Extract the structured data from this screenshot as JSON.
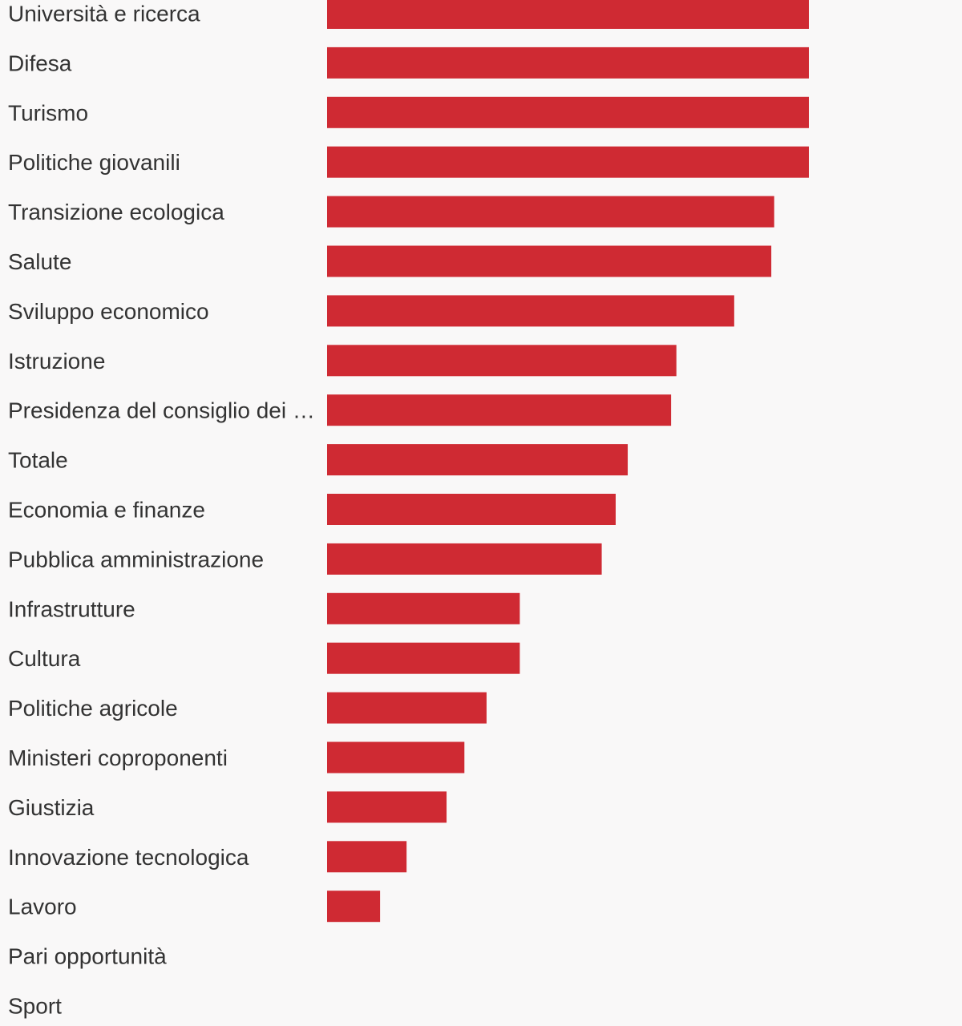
{
  "chart_data": {
    "type": "bar",
    "orientation": "horizontal",
    "categories": [
      "Università e ricerca",
      "Difesa",
      "Turismo",
      "Politiche giovanili",
      "Transizione ecologica",
      "Salute",
      "Sviluppo economico",
      "Istruzione",
      "Presidenza del consiglio dei …",
      "Totale",
      "Economia e finanze",
      "Pubblica amministrazione",
      "Infrastrutture",
      "Cultura",
      "Politiche agricole",
      "Ministeri coproponenti",
      "Giustizia",
      "Innovazione tecnologica",
      "Lavoro",
      "Pari opportunità",
      "Sport"
    ],
    "values": [
      100,
      100,
      100,
      100,
      92.8,
      92.2,
      84.5,
      72.5,
      71.4,
      62.4,
      59.9,
      57.0,
      40.0,
      40.0,
      33.1,
      28.5,
      24.8,
      16.5,
      11.0,
      0,
      0
    ],
    "xlim": [
      0,
      100
    ],
    "title": "",
    "xlabel": "",
    "ylabel": "",
    "bar_color": "#cf2a33",
    "grid": false,
    "legend": "none"
  }
}
